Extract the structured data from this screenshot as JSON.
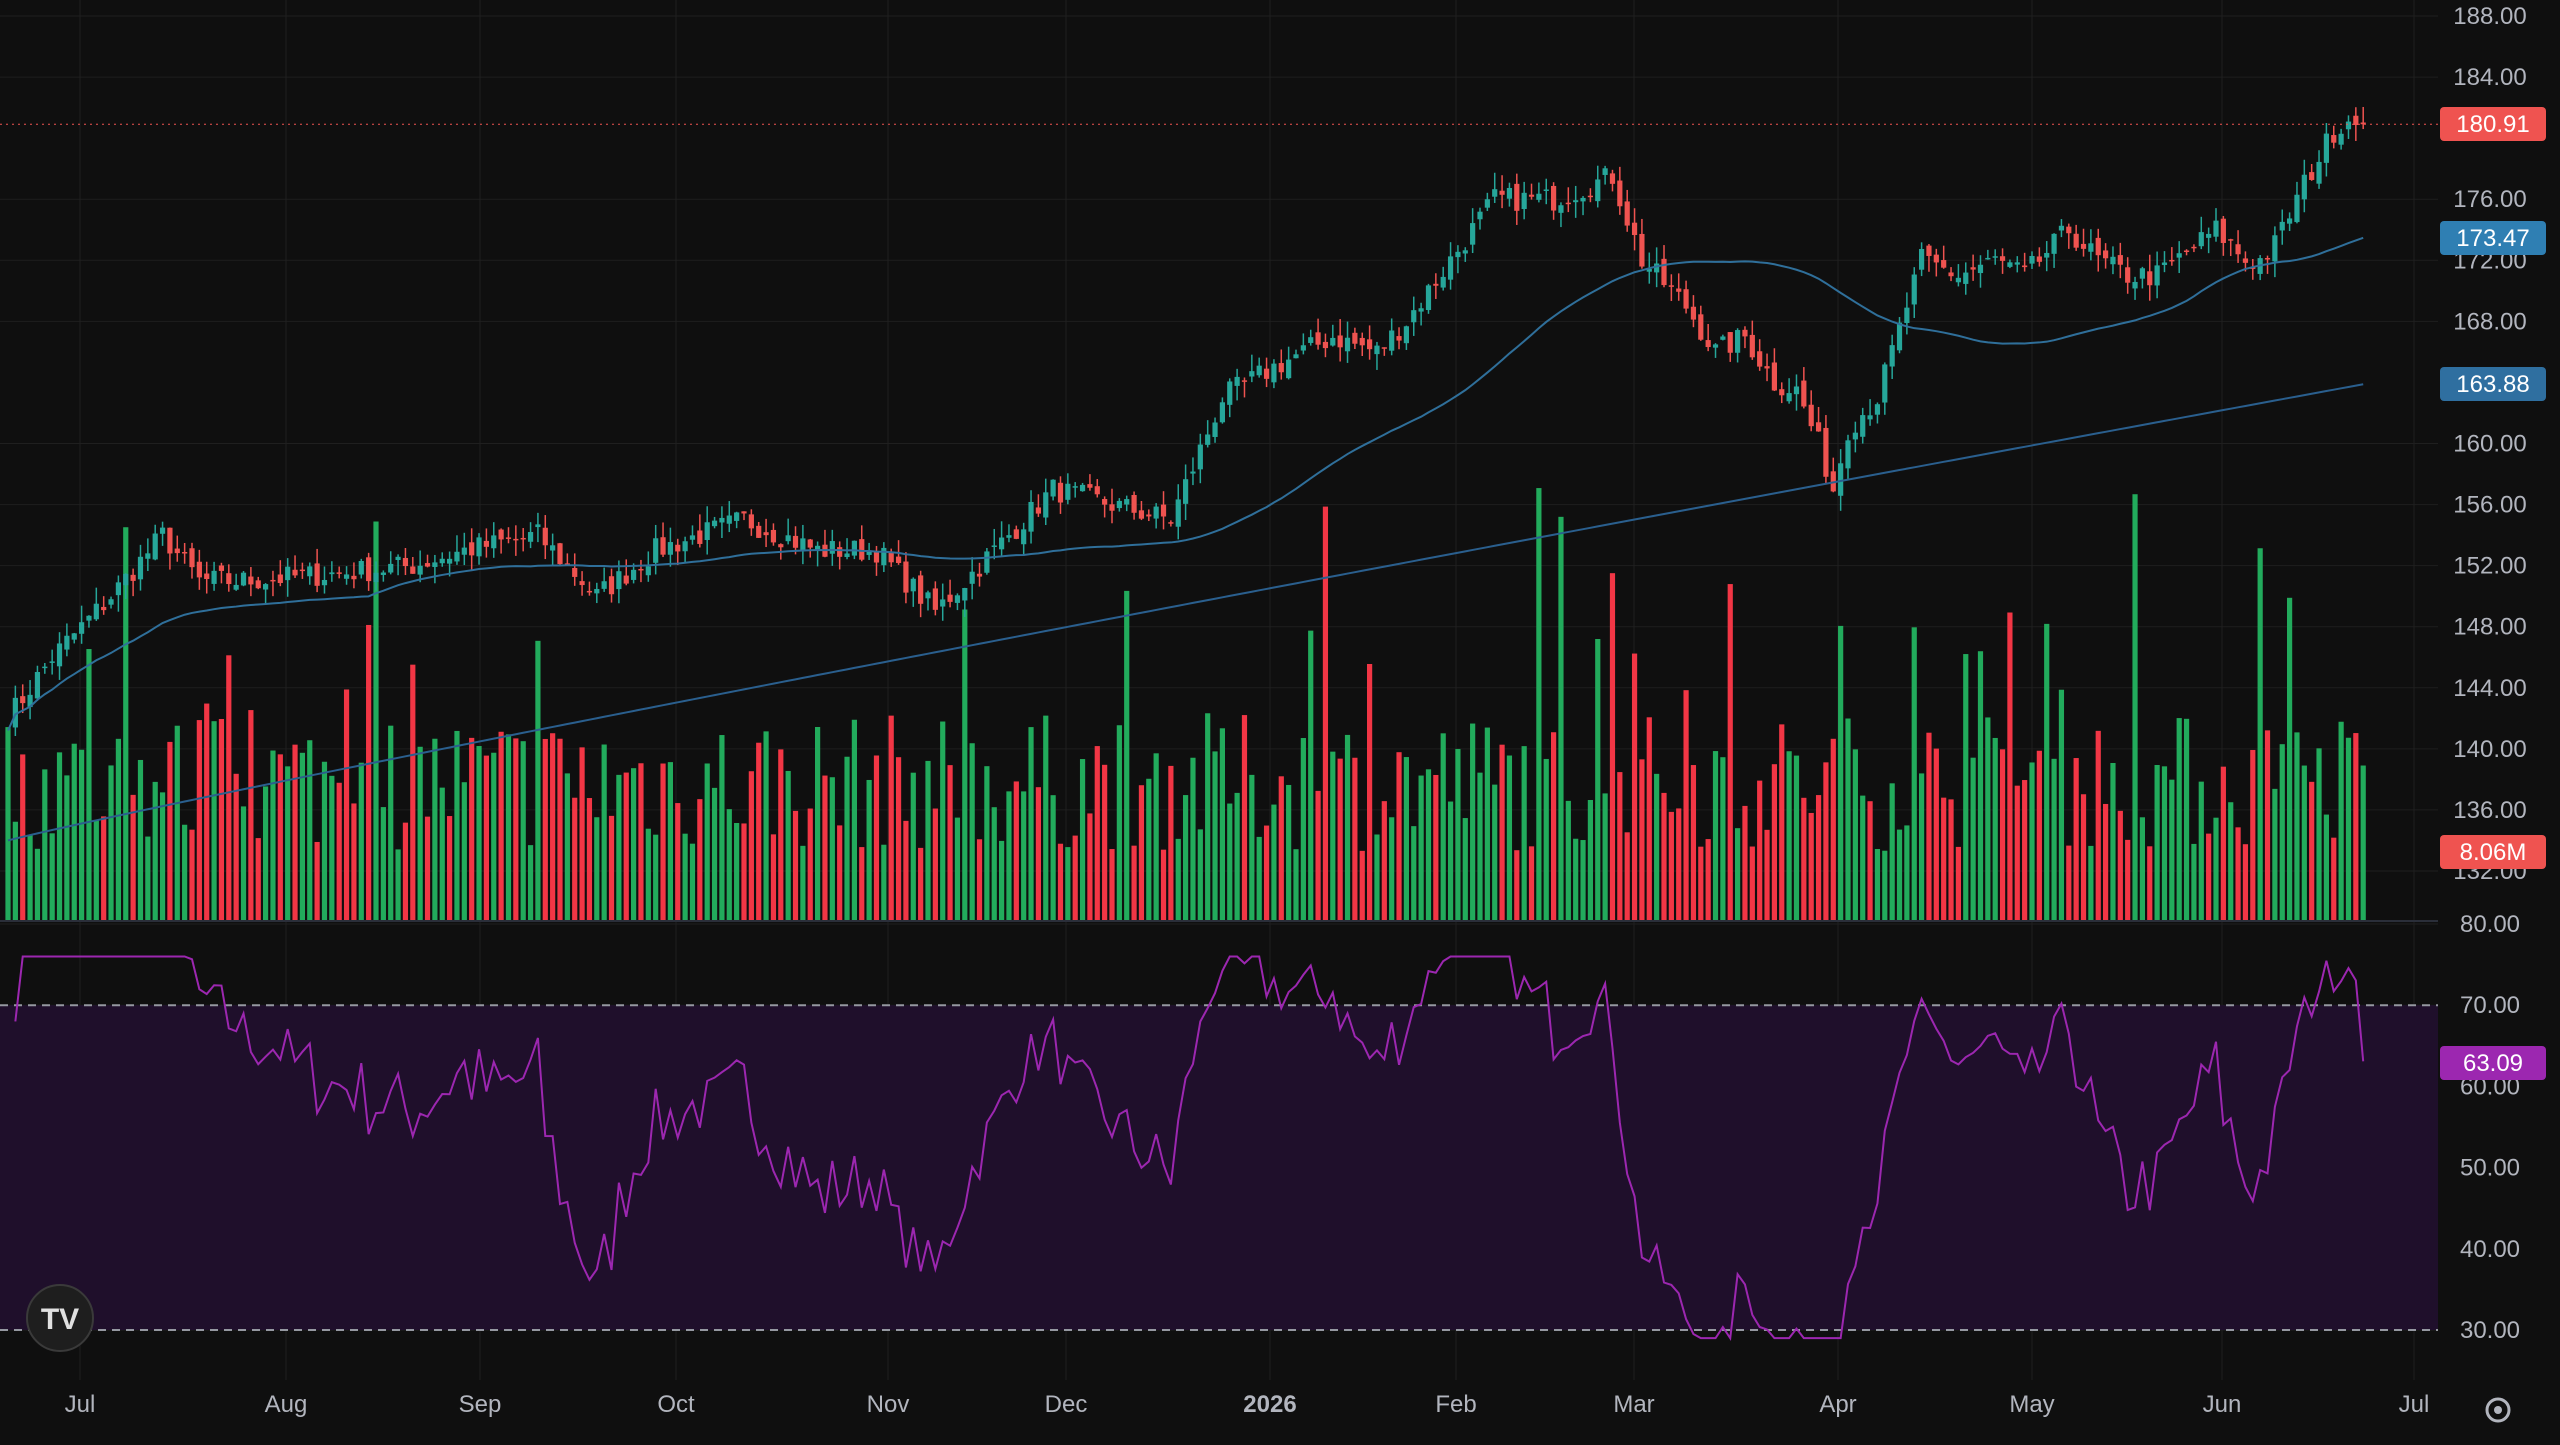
{
  "colors": {
    "background": "#0f0f0f",
    "grid": "#1f1f1f",
    "up": "#26a69a",
    "down": "#ef5350",
    "volume_up": "#22ab5c",
    "volume_down": "#f23645",
    "ma_fast": "#2f6f9a",
    "ma_slow": "#2a5f8e",
    "rsi_line": "#9c27b0",
    "rsi_band": "#1f0f2b",
    "axis_text": "#b2b5be"
  },
  "icons": {
    "logo": "tradingview-logo-icon",
    "settings": "gear-icon"
  },
  "chart_data": [
    {
      "type": "candlestick",
      "ylim": [
        128,
        188
      ],
      "y_ticks": [
        "188.00",
        "184.00",
        "176.00",
        "172.00",
        "168.00",
        "160.00",
        "156.00",
        "152.00",
        "148.00",
        "144.00",
        "140.00",
        "136.00",
        "132.00"
      ],
      "x_ticks": [
        "Jul",
        "Aug",
        "Sep",
        "Oct",
        "Nov",
        "Dec",
        "2026",
        "Feb",
        "Mar",
        "Apr",
        "May",
        "Jun",
        "Jul"
      ],
      "price_labels": {
        "last": "180.91",
        "ma_fast": "173.47",
        "ma_slow": "163.88",
        "volume": "8.06M"
      },
      "close_anchors": [
        [
          0,
          142
        ],
        [
          6,
          146
        ],
        [
          14,
          150
        ],
        [
          21,
          154
        ],
        [
          26,
          151
        ],
        [
          32,
          151
        ],
        [
          45,
          151.5
        ],
        [
          55,
          152
        ],
        [
          62,
          153
        ],
        [
          72,
          154
        ],
        [
          80,
          150
        ],
        [
          88,
          153
        ],
        [
          100,
          155
        ],
        [
          110,
          153
        ],
        [
          118,
          153
        ],
        [
          126,
          149
        ],
        [
          132,
          152
        ],
        [
          142,
          157
        ],
        [
          150,
          156
        ],
        [
          158,
          155
        ],
        [
          165,
          163
        ],
        [
          172,
          165
        ],
        [
          180,
          167
        ],
        [
          186,
          166
        ],
        [
          190,
          168
        ],
        [
          196,
          172
        ],
        [
          202,
          176
        ],
        [
          210,
          176
        ],
        [
          218,
          177.5
        ],
        [
          222,
          172
        ],
        [
          228,
          169
        ],
        [
          232,
          166
        ],
        [
          236,
          167
        ],
        [
          240,
          164
        ],
        [
          243,
          163.5
        ],
        [
          246,
          160
        ],
        [
          248,
          157
        ],
        [
          250,
          161
        ],
        [
          254,
          163
        ],
        [
          260,
          172
        ],
        [
          265,
          171
        ],
        [
          270,
          172
        ],
        [
          274,
          171
        ],
        [
          280,
          174
        ],
        [
          284,
          172
        ],
        [
          288,
          171
        ],
        [
          292,
          171
        ],
        [
          300,
          174
        ],
        [
          304,
          172
        ],
        [
          306,
          172
        ],
        [
          308,
          173
        ],
        [
          312,
          177
        ],
        [
          316,
          180.5
        ],
        [
          320,
          182
        ]
      ],
      "volume_ylim": [
        0,
        12
      ],
      "rsi": {
        "ylim": [
          20,
          80
        ],
        "levels": [
          70,
          30
        ],
        "y_ticks": [
          "80.00",
          "70.00",
          "60.00",
          "50.00",
          "40.00",
          "30.00"
        ],
        "last": "63.09"
      }
    }
  ]
}
